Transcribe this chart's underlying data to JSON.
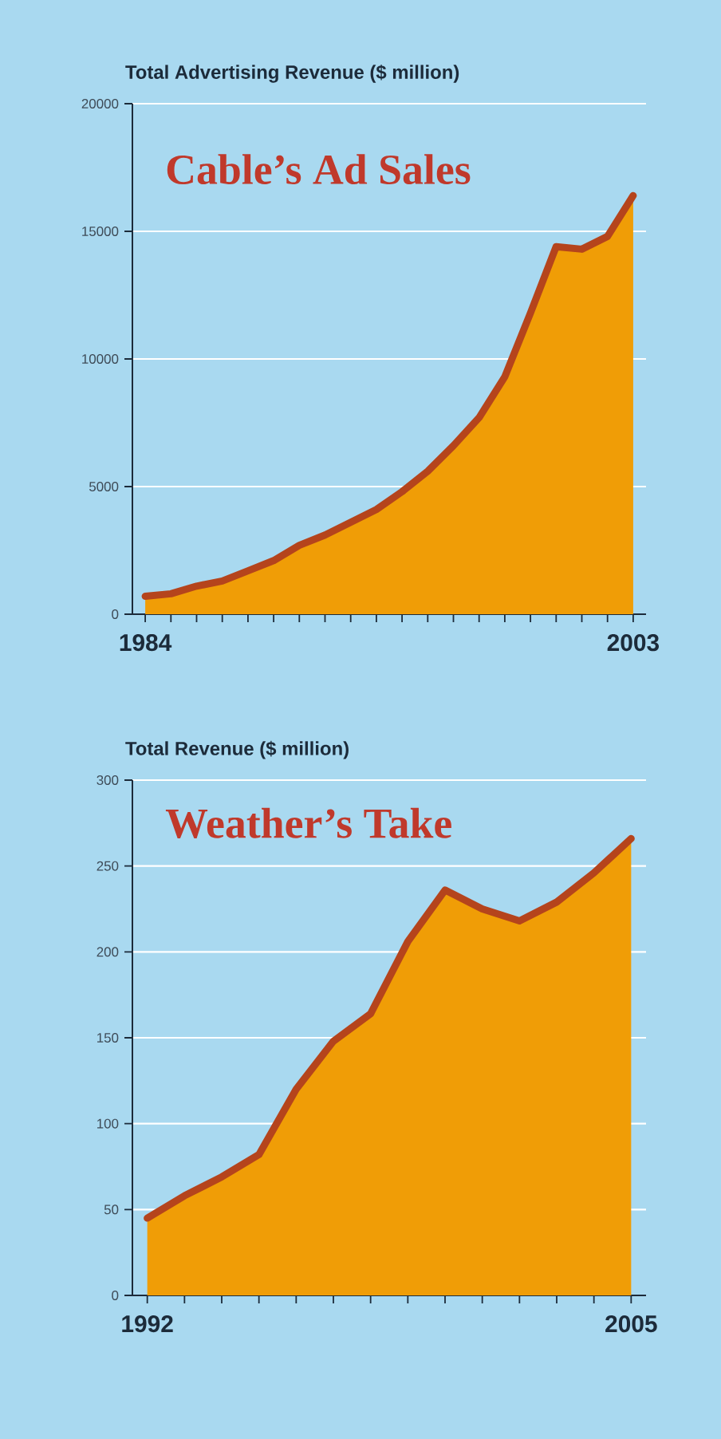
{
  "chart_data": [
    {
      "type": "area",
      "title": "Cable’s Ad Sales",
      "ylabel": "Total Advertising Revenue ($ million)",
      "x": [
        1984,
        1985,
        1986,
        1987,
        1988,
        1989,
        1990,
        1991,
        1992,
        1993,
        1994,
        1995,
        1996,
        1997,
        1998,
        1999,
        2000,
        2001,
        2002,
        2003
      ],
      "series": [
        {
          "color": "#b5441c",
          "values": [
            700,
            800,
            1100,
            1300,
            1700,
            2100,
            2700,
            3100,
            3600,
            4100,
            4800,
            5600,
            6600,
            7700,
            9300,
            11800,
            14400,
            14300,
            14800,
            16400
          ]
        }
      ],
      "xlim": [
        1983.5,
        2003.5
      ],
      "ylim": [
        0,
        20000
      ],
      "xticks": [
        1984,
        {
          "value": 1985,
          "label": null
        },
        {
          "value": 1986,
          "label": null
        },
        {
          "value": 1987,
          "label": null
        },
        {
          "value": 1988,
          "label": null
        },
        {
          "value": 1989,
          "label": null
        },
        {
          "value": 1990,
          "label": null
        },
        {
          "value": 1991,
          "label": null
        },
        {
          "value": 1992,
          "label": null
        },
        {
          "value": 1993,
          "label": null
        },
        {
          "value": 1994,
          "label": null
        },
        {
          "value": 1995,
          "label": null
        },
        {
          "value": 1996,
          "label": null
        },
        {
          "value": 1997,
          "label": null
        },
        {
          "value": 1998,
          "label": null
        },
        {
          "value": 1999,
          "label": null
        },
        {
          "value": 2000,
          "label": null
        },
        {
          "value": 2001,
          "label": null
        },
        {
          "value": 2002,
          "label": null
        },
        2003
      ],
      "yticks": [
        0,
        5000,
        10000,
        15000,
        20000
      ],
      "grid": "y"
    },
    {
      "type": "area",
      "title": "Weather’s Take",
      "ylabel": "Total Revenue ($ million)",
      "x": [
        1992,
        1993,
        1994,
        1995,
        1996,
        1997,
        1998,
        1999,
        2000,
        2001,
        2002,
        2003,
        2004,
        2005
      ],
      "series": [
        {
          "color": "#b5441c",
          "values": [
            45,
            58,
            69,
            82,
            120,
            148,
            164,
            206,
            236,
            225,
            218,
            229,
            246,
            266
          ]
        }
      ],
      "xlim": [
        1991.6,
        2005.4
      ],
      "ylim": [
        0,
        300
      ],
      "xticks": [
        1992,
        {
          "value": 1993,
          "label": null
        },
        {
          "value": 1994,
          "label": null
        },
        {
          "value": 1995,
          "label": null
        },
        {
          "value": 1996,
          "label": null
        },
        {
          "value": 1997,
          "label": null
        },
        {
          "value": 1998,
          "label": null
        },
        {
          "value": 1999,
          "label": null
        },
        {
          "value": 2000,
          "label": null
        },
        {
          "value": 2001,
          "label": null
        },
        {
          "value": 2002,
          "label": null
        },
        {
          "value": 2003,
          "label": null
        },
        {
          "value": 2004,
          "label": null
        },
        2005
      ],
      "yticks": [
        0,
        50,
        100,
        150,
        200,
        250,
        300
      ],
      "grid": "y"
    }
  ]
}
